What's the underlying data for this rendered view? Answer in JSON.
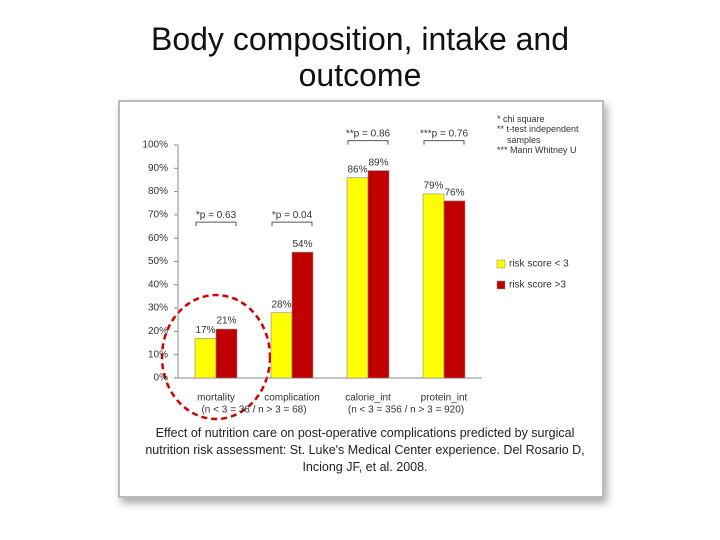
{
  "slide_title": "Body composition, intake and outcome",
  "chart_data": {
    "type": "bar",
    "categories": [
      "mortality",
      "complication",
      "calorie_int",
      "protein_int"
    ],
    "x_group_labels": [
      "(n < 3 = 36 / n > 3 = 68)",
      "(n < 3 = 356 / n > 3 = 920)"
    ],
    "series": [
      {
        "name": "risk score < 3",
        "color": "#ffff00",
        "values": [
          17,
          28,
          86,
          79
        ],
        "value_labels": [
          "17%",
          "28%",
          "86%",
          "79%"
        ]
      },
      {
        "name": "risk score >3",
        "color": "#c00000",
        "values": [
          21,
          54,
          89,
          76
        ],
        "value_labels": [
          "21%",
          "54%",
          "89%",
          "76%"
        ]
      }
    ],
    "annotations": [
      "*p = 0.63",
      "*p = 0.04",
      "**p = 0.86",
      "***p = 0.76"
    ],
    "notes": [
      "* chi square",
      "** t-test independent samples",
      "*** Mann Whitney U"
    ],
    "caption": "Effect of nutrition care on post-operative complications predicted by surgical nutrition risk assessment: St. Luke's Medical Center experience. Del Rosario D, Inciong JF, et al. 2008.",
    "ylim": [
      0,
      100
    ],
    "yticks": [
      {
        "value": 0,
        "label": "0%"
      },
      {
        "value": 10,
        "label": "10%"
      },
      {
        "value": 20,
        "label": "20%"
      },
      {
        "value": 30,
        "label": "30%"
      },
      {
        "value": 40,
        "label": "40%"
      },
      {
        "value": 50,
        "label": "50%"
      },
      {
        "value": 60,
        "label": "60%"
      },
      {
        "value": 70,
        "label": "70%"
      },
      {
        "value": 80,
        "label": "80%"
      },
      {
        "value": 90,
        "label": "90%"
      },
      {
        "value": 100,
        "label": "100%"
      }
    ],
    "legend": "right"
  }
}
